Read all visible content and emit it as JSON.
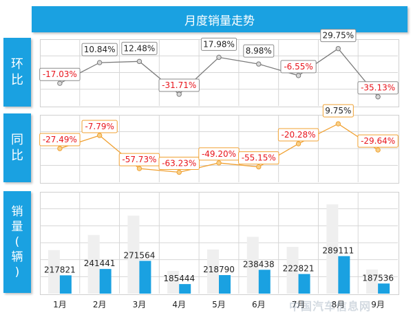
{
  "title": "月度销量走势",
  "side_labels": {
    "mom": [
      "环",
      "比"
    ],
    "yoy": [
      "同",
      "比"
    ],
    "sales": [
      "销",
      "量",
      "(",
      "辆",
      ")"
    ]
  },
  "watermark": "中国汽车信息网",
  "colors": {
    "accent": "#1aa1e1",
    "orange": "#f0a030",
    "red": "#e8141c",
    "gray_bar": "#efefef"
  },
  "chart_data": [
    {
      "type": "line",
      "name_label": "环比",
      "categories": [
        "1月",
        "2月",
        "3月",
        "4月",
        "5月",
        "6月",
        "7月",
        "8月",
        "9月"
      ],
      "values": [
        -17.03,
        10.84,
        12.48,
        -31.71,
        17.98,
        8.98,
        -6.55,
        29.75,
        -35.13
      ],
      "labels": [
        "-17.03%",
        "10.84%",
        "12.48%",
        "-31.71%",
        "17.98%",
        "8.98%",
        "-6.55%",
        "29.75%",
        "-35.13%"
      ]
    },
    {
      "type": "line",
      "name_label": "同比",
      "categories": [
        "1月",
        "2月",
        "3月",
        "4月",
        "5月",
        "6月",
        "7月",
        "8月",
        "9月"
      ],
      "values": [
        -27.49,
        -7.79,
        -57.73,
        -63.23,
        -49.2,
        -55.15,
        -20.28,
        9.75,
        -29.64
      ],
      "labels": [
        "-27.49%",
        "-7.79%",
        "-57.73%",
        "-63.23%",
        "-49.20%",
        "-55.15%",
        "-20.28%",
        "9.75%",
        "-29.64%"
      ]
    },
    {
      "type": "bar",
      "name_label": "销量(辆)",
      "categories": [
        "1月",
        "2月",
        "3月",
        "4月",
        "5月",
        "6月",
        "7月",
        "8月",
        "9月"
      ],
      "series": [
        {
          "values": [
            217821,
            241441,
            271564,
            185444,
            218790,
            238438,
            222821,
            289111,
            187536
          ]
        }
      ],
      "value_labels": [
        "217821",
        "241441",
        "271564",
        "185444",
        "218790",
        "238438",
        "222821",
        "289111",
        "187536"
      ]
    }
  ]
}
